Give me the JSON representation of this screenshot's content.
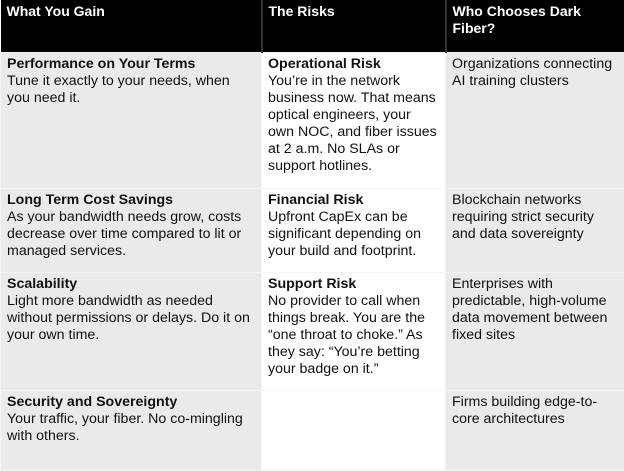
{
  "headers": [
    "What You Gain",
    "The Risks",
    "Who Chooses Dark Fiber?"
  ],
  "rows": [
    {
      "gain": {
        "title": "Performance on Your Terms",
        "text": "Tune it exactly to your needs, when you need it."
      },
      "risk": {
        "title": "Operational Risk",
        "text": "You’re in the network business now. That means optical engineers, your own NOC, and fiber issues at 2 a.m. No SLAs or support hotlines."
      },
      "who": "Organizations connecting AI training clusters"
    },
    {
      "gain": {
        "title": "Long Term Cost Savings",
        "text": "As your bandwidth needs grow, costs decrease over time compared to lit or managed services."
      },
      "risk": {
        "title": "Financial Risk",
        "text": "Upfront CapEx can be significant depending on your build and footprint."
      },
      "who": "Blockchain networks requiring strict security and data sovereignty"
    },
    {
      "gain": {
        "title": "Scalability",
        "text": "Light more bandwidth as needed without permissions or delays. Do it on your own time."
      },
      "risk": {
        "title": "Support Risk",
        "text": "No provider to call when things break. You are the “one throat to choke.” As they say: “You’re betting your badge on it.”"
      },
      "who": "Enterprises with predictable, high-volume data movement between fixed sites"
    },
    {
      "gain": {
        "title": "Security and Sovereignty",
        "text": "Your traffic, your fiber. No co-mingling with others."
      },
      "risk": {
        "title": "",
        "text": ""
      },
      "who": "Firms building edge-to-core architectures"
    }
  ]
}
